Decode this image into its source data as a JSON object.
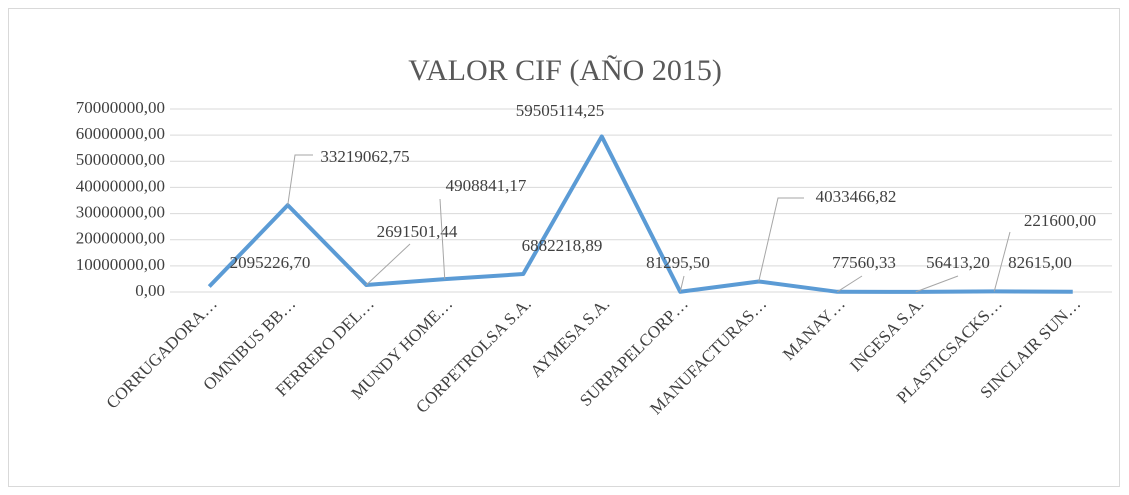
{
  "chart_data": {
    "type": "line",
    "title": "VALOR CIF (AÑO 2015)",
    "categories": [
      "CORRUGADORA…",
      "OMNIBUS BB…",
      "FERRERO DEL…",
      "MUNDY HOME…",
      "CORPETROLSA S.A.",
      "AYMESA S.A.",
      "SURPAPELCORP…",
      "MANUFACTURAS…",
      "MANAY…",
      "INGESA S.A.",
      "PLASTICSACKS…",
      "SINCLAIR SUN…"
    ],
    "series": [
      {
        "name": "VALOR CIF",
        "color": "#5b9bd5",
        "values": [
          2095226.7,
          33219062.75,
          2691501.44,
          4908841.17,
          6882218.89,
          59505114.25,
          81295.5,
          4033466.82,
          77560.33,
          56413.2,
          221600.0,
          82615.0
        ],
        "value_labels": [
          "2095226,70",
          "33219062,75",
          "2691501,44",
          "4908841,17",
          "6882218,89",
          "59505114,25",
          "81295,50",
          "4033466,82",
          "77560,33",
          "56413,20",
          "221600,00",
          "82615,00"
        ]
      }
    ],
    "ylim": [
      0,
      70000000
    ],
    "yticks": [
      {
        "value": 0,
        "label": "0,00"
      },
      {
        "value": 10000000,
        "label": "10000000,00"
      },
      {
        "value": 20000000,
        "label": "20000000,00"
      },
      {
        "value": 30000000,
        "label": "30000000,00"
      },
      {
        "value": 40000000,
        "label": "40000000,00"
      },
      {
        "value": 50000000,
        "label": "50000000,00"
      },
      {
        "value": 60000000,
        "label": "60000000,00"
      },
      {
        "value": 70000000,
        "label": "70000000,00"
      }
    ],
    "grid": true
  }
}
